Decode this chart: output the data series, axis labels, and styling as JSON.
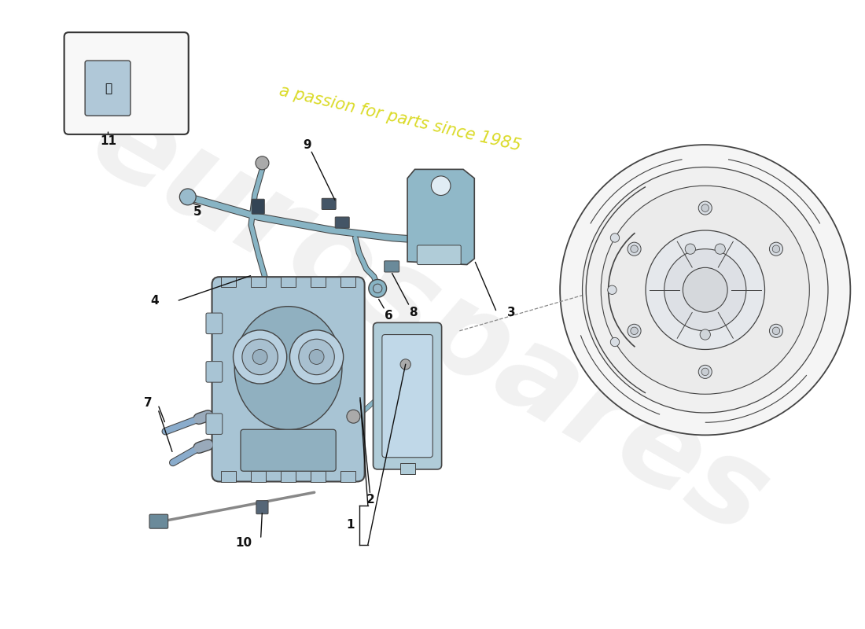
{
  "background_color": "#ffffff",
  "watermark_text1": "eurospares",
  "watermark_text2": "a passion for parts since 1985",
  "watermark_color1": "#cccccc",
  "watermark_color2": "#d4d400",
  "calliper_color": "#a8c4d4",
  "calliper_dark": "#7a9ab0",
  "calliper_mid": "#90b0c0",
  "pad_color": "#b0ccd8",
  "outline_color": "#444444",
  "hose_color": "#88b4c4",
  "bracket_color": "#90b8c8",
  "sensor_color": "#6a8a9a",
  "bolt_color": "#8aaccc",
  "label_font_size": 11,
  "leader_color": "#111111"
}
